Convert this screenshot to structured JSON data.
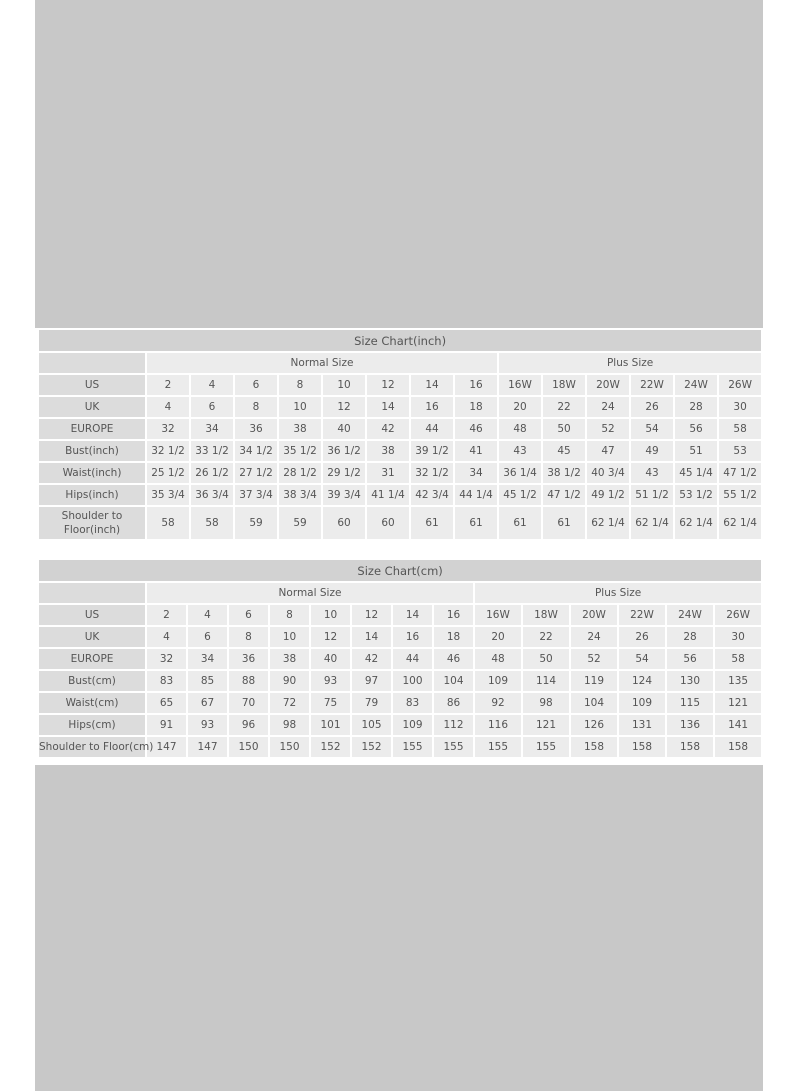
{
  "colors": {
    "background": "#c8c8c8",
    "title_row": "#d2d2d2",
    "label_cell": "#dcdcdc",
    "data_cell": "#ececec",
    "text": "#555555"
  },
  "tables": [
    {
      "title": "Size Chart(inch)",
      "groups": [
        {
          "label": "Normal Size",
          "span": 8
        },
        {
          "label": "Plus Size",
          "span": 6
        }
      ],
      "rows": [
        {
          "label": "US",
          "values": [
            "2",
            "4",
            "6",
            "8",
            "10",
            "12",
            "14",
            "16",
            "16W",
            "18W",
            "20W",
            "22W",
            "24W",
            "26W"
          ]
        },
        {
          "label": "UK",
          "values": [
            "4",
            "6",
            "8",
            "10",
            "12",
            "14",
            "16",
            "18",
            "20",
            "22",
            "24",
            "26",
            "28",
            "30"
          ]
        },
        {
          "label": "EUROPE",
          "values": [
            "32",
            "34",
            "36",
            "38",
            "40",
            "42",
            "44",
            "46",
            "48",
            "50",
            "52",
            "54",
            "56",
            "58"
          ]
        },
        {
          "label": "Bust(inch)",
          "values": [
            "32 1/2",
            "33 1/2",
            "34 1/2",
            "35 1/2",
            "36 1/2",
            "38",
            "39 1/2",
            "41",
            "43",
            "45",
            "47",
            "49",
            "51",
            "53"
          ]
        },
        {
          "label": "Waist(inch)",
          "values": [
            "25 1/2",
            "26 1/2",
            "27 1/2",
            "28 1/2",
            "29 1/2",
            "31",
            "32 1/2",
            "34",
            "36 1/4",
            "38 1/2",
            "40 3/4",
            "43",
            "45 1/4",
            "47 1/2"
          ]
        },
        {
          "label": "Hips(inch)",
          "values": [
            "35 3/4",
            "36 3/4",
            "37 3/4",
            "38 3/4",
            "39 3/4",
            "41 1/4",
            "42 3/4",
            "44 1/4",
            "45 1/2",
            "47 1/2",
            "49 1/2",
            "51 1/2",
            "53 1/2",
            "55 1/2"
          ]
        },
        {
          "label": "Shoulder to Floor(inch)",
          "values": [
            "58",
            "58",
            "59",
            "59",
            "60",
            "60",
            "61",
            "61",
            "61",
            "61",
            "62 1/4",
            "62 1/4",
            "62 1/4",
            "62 1/4"
          ]
        }
      ]
    },
    {
      "title": "Size Chart(cm)",
      "groups": [
        {
          "label": "Normal Size",
          "span": 8
        },
        {
          "label": "Plus Size",
          "span": 6
        }
      ],
      "rows": [
        {
          "label": "US",
          "values": [
            "2",
            "4",
            "6",
            "8",
            "10",
            "12",
            "14",
            "16",
            "16W",
            "18W",
            "20W",
            "22W",
            "24W",
            "26W"
          ]
        },
        {
          "label": "UK",
          "values": [
            "4",
            "6",
            "8",
            "10",
            "12",
            "14",
            "16",
            "18",
            "20",
            "22",
            "24",
            "26",
            "28",
            "30"
          ]
        },
        {
          "label": "EUROPE",
          "values": [
            "32",
            "34",
            "36",
            "38",
            "40",
            "42",
            "44",
            "46",
            "48",
            "50",
            "52",
            "54",
            "56",
            "58"
          ]
        },
        {
          "label": "Bust(cm)",
          "values": [
            "83",
            "85",
            "88",
            "90",
            "93",
            "97",
            "100",
            "104",
            "109",
            "114",
            "119",
            "124",
            "130",
            "135"
          ]
        },
        {
          "label": "Waist(cm)",
          "values": [
            "65",
            "67",
            "70",
            "72",
            "75",
            "79",
            "83",
            "86",
            "92",
            "98",
            "104",
            "109",
            "115",
            "121"
          ]
        },
        {
          "label": "Hips(cm)",
          "values": [
            "91",
            "93",
            "96",
            "98",
            "101",
            "105",
            "109",
            "112",
            "116",
            "121",
            "126",
            "131",
            "136",
            "141"
          ]
        },
        {
          "label": "Shoulder to Floor(cm)",
          "values": [
            "147",
            "147",
            "150",
            "150",
            "152",
            "152",
            "155",
            "155",
            "155",
            "155",
            "158",
            "158",
            "158",
            "158"
          ]
        }
      ]
    }
  ]
}
